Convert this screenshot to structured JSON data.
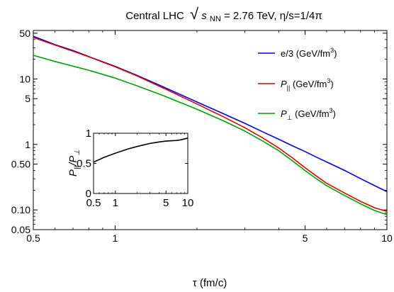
{
  "chart_data": {
    "type": "line",
    "title": {
      "prefix": "Central LHC",
      "sqrt_symbol": "√",
      "sqrt_var": "s",
      "sqrt_sub": "NN",
      "suffix": " = 2.76 TeV, η/s=1/4π"
    },
    "xlabel": "τ (fm/c)",
    "ylabel": "",
    "xscale": "log",
    "yscale": "log",
    "xlim": [
      0.5,
      10
    ],
    "ylim": [
      0.05,
      55
    ],
    "xticks": [
      {
        "v": 0.5,
        "label": "0.5"
      },
      {
        "v": 1,
        "label": "1"
      },
      {
        "v": 5,
        "label": "5"
      },
      {
        "v": 10,
        "label": "10"
      }
    ],
    "yticks": [
      {
        "v": 0.05,
        "label": "0.05"
      },
      {
        "v": 0.1,
        "label": "0.10"
      },
      {
        "v": 0.5,
        "label": "0.50"
      },
      {
        "v": 1,
        "label": "1"
      },
      {
        "v": 5,
        "label": "5"
      },
      {
        "v": 10,
        "label": "10"
      },
      {
        "v": 50,
        "label": "50"
      }
    ],
    "legend_position": "top-right",
    "series": [
      {
        "key": "e3",
        "legend_main": "e/3",
        "legend_sub": "",
        "legend_unit_base": " (GeV/fm",
        "legend_unit_exp": "3",
        "legend_unit_close": ")",
        "color": "#0000dd",
        "x": [
          0.5,
          0.6,
          0.7,
          0.8,
          1.0,
          1.2,
          1.5,
          2.0,
          2.5,
          3.0,
          3.5,
          4.0,
          4.5,
          5.0,
          5.5,
          6.0,
          7.0,
          8.0,
          9.0,
          10.0
        ],
        "y": [
          45.0,
          33.5,
          27.2,
          22.0,
          15.6,
          11.4,
          7.6,
          4.45,
          2.95,
          2.1,
          1.55,
          1.2,
          0.95,
          0.78,
          0.64,
          0.54,
          0.4,
          0.3,
          0.235,
          0.19
        ]
      },
      {
        "key": "ppar",
        "legend_main": "P",
        "legend_sub": "||",
        "legend_unit_base": " (GeV/fm",
        "legend_unit_exp": "3",
        "legend_unit_close": ")",
        "color": "#dd0000",
        "x": [
          0.5,
          0.6,
          0.7,
          0.8,
          1.0,
          1.2,
          1.5,
          2.0,
          2.5,
          3.0,
          3.5,
          4.0,
          4.5,
          5.0,
          5.5,
          6.0,
          7.0,
          8.0,
          9.0,
          10.0
        ],
        "y": [
          43.0,
          33.0,
          26.5,
          21.8,
          15.3,
          11.2,
          7.3,
          4.15,
          2.65,
          1.8,
          1.25,
          0.88,
          0.62,
          0.44,
          0.33,
          0.255,
          0.18,
          0.135,
          0.108,
          0.095
        ]
      },
      {
        "key": "pperp",
        "legend_main": "P",
        "legend_sub": "⊥",
        "legend_unit_base": " (GeV/fm",
        "legend_unit_exp": "3",
        "legend_unit_close": ")",
        "color": "#00a000",
        "x": [
          0.5,
          0.6,
          0.7,
          0.8,
          1.0,
          1.2,
          1.5,
          2.0,
          2.5,
          3.0,
          3.5,
          4.0,
          4.5,
          5.0,
          5.5,
          6.0,
          7.0,
          8.0,
          9.0,
          10.0
        ],
        "y": [
          23.0,
          18.5,
          15.7,
          13.6,
          10.3,
          7.9,
          5.6,
          3.45,
          2.3,
          1.6,
          1.12,
          0.8,
          0.56,
          0.4,
          0.3,
          0.235,
          0.165,
          0.124,
          0.098,
          0.085
        ]
      }
    ],
    "inset": {
      "type": "line",
      "ylabel_main": "P",
      "ylabel_sub1": "||",
      "ylabel_sep": "/P",
      "ylabel_sub2": "⊥",
      "xscale": "log",
      "xlim": [
        0.5,
        10
      ],
      "ylim": [
        0,
        1
      ],
      "xticks": [
        {
          "v": 0.5,
          "label": "0.5"
        },
        {
          "v": 1,
          "label": "1"
        },
        {
          "v": 5,
          "label": "5"
        },
        {
          "v": 10,
          "label": "10"
        }
      ],
      "yticks": [
        {
          "v": 0,
          "label": "0"
        },
        {
          "v": 0.5,
          "label": "0.5"
        },
        {
          "v": 1,
          "label": "1"
        }
      ],
      "color": "#000000",
      "x": [
        0.5,
        0.7,
        1.0,
        1.5,
        2.0,
        3.0,
        4.0,
        5.0,
        6.0,
        7.0,
        8.0,
        10.0
      ],
      "y": [
        0.52,
        0.6,
        0.67,
        0.74,
        0.78,
        0.83,
        0.855,
        0.87,
        0.875,
        0.88,
        0.89,
        0.92
      ]
    }
  }
}
